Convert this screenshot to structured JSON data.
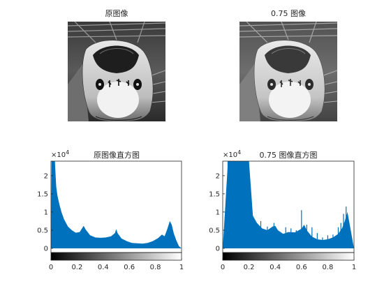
{
  "figure": {
    "images": [
      {
        "title": "原图像"
      },
      {
        "title": "0.75 图像"
      }
    ]
  },
  "chart_data": [
    {
      "type": "bar",
      "title": "原图像直方图",
      "x_range": [
        0,
        1
      ],
      "ylim": [
        0,
        24000
      ],
      "y_exponent": "× 10^4",
      "xticks": [
        "0",
        "0.2",
        "0.4",
        "0.6",
        "0.8",
        "1"
      ],
      "yticks": [
        "0",
        "0.5",
        "1",
        "1.5",
        "2"
      ],
      "colorbar": "grayscale 0 → 1",
      "bar_color": "#0072BD",
      "profile": [
        [
          0.0,
          0
        ],
        [
          0.005,
          24000
        ],
        [
          0.03,
          24000
        ],
        [
          0.04,
          17000
        ],
        [
          0.05,
          14500
        ],
        [
          0.065,
          12000
        ],
        [
          0.08,
          10000
        ],
        [
          0.1,
          8000
        ],
        [
          0.13,
          6000
        ],
        [
          0.16,
          5000
        ],
        [
          0.19,
          4300
        ],
        [
          0.22,
          4500
        ],
        [
          0.24,
          5600
        ],
        [
          0.25,
          6200
        ],
        [
          0.265,
          5200
        ],
        [
          0.3,
          3600
        ],
        [
          0.34,
          3000
        ],
        [
          0.38,
          2900
        ],
        [
          0.42,
          3000
        ],
        [
          0.46,
          3300
        ],
        [
          0.49,
          4200
        ],
        [
          0.5,
          5300
        ],
        [
          0.51,
          4200
        ],
        [
          0.54,
          2700
        ],
        [
          0.58,
          2000
        ],
        [
          0.62,
          1500
        ],
        [
          0.66,
          1400
        ],
        [
          0.7,
          1300
        ],
        [
          0.74,
          1500
        ],
        [
          0.78,
          2000
        ],
        [
          0.82,
          2800
        ],
        [
          0.85,
          3800
        ],
        [
          0.87,
          3300
        ],
        [
          0.89,
          5200
        ],
        [
          0.91,
          7500
        ],
        [
          0.925,
          6500
        ],
        [
          0.94,
          4200
        ],
        [
          0.96,
          2200
        ],
        [
          0.98,
          600
        ],
        [
          1.0,
          0
        ]
      ]
    },
    {
      "type": "bar",
      "title": "0.75 图像直方图",
      "x_range": [
        0,
        1
      ],
      "ylim": [
        0,
        24000
      ],
      "y_exponent": "× 10^4",
      "xticks": [
        "0",
        "0.2",
        "0.4",
        "0.6",
        "0.8",
        "1"
      ],
      "yticks": [
        "0",
        "0.5",
        "1",
        "1.5",
        "2"
      ],
      "colorbar": "grayscale 0 → 1",
      "bar_color": "#0072BD",
      "profile": [
        [
          0.0,
          0
        ],
        [
          0.04,
          24000
        ],
        [
          0.2,
          24000
        ],
        [
          0.23,
          9000
        ],
        [
          0.26,
          7000
        ],
        [
          0.3,
          5500
        ],
        [
          0.34,
          5000
        ],
        [
          0.38,
          6000
        ],
        [
          0.4,
          6200
        ],
        [
          0.42,
          5000
        ],
        [
          0.46,
          4000
        ],
        [
          0.5,
          4500
        ],
        [
          0.55,
          4400
        ],
        [
          0.6,
          5400
        ],
        [
          0.62,
          6500
        ],
        [
          0.64,
          5000
        ],
        [
          0.68,
          3200
        ],
        [
          0.72,
          2500
        ],
        [
          0.76,
          2300
        ],
        [
          0.8,
          2500
        ],
        [
          0.84,
          3000
        ],
        [
          0.88,
          4000
        ],
        [
          0.91,
          5600
        ],
        [
          0.93,
          7500
        ],
        [
          0.95,
          10000
        ],
        [
          0.97,
          6000
        ],
        [
          0.99,
          2000
        ],
        [
          1.0,
          0
        ]
      ],
      "spikes": [
        [
          0.04,
          24000
        ],
        [
          0.065,
          24000
        ],
        [
          0.09,
          24000
        ],
        [
          0.115,
          24000
        ],
        [
          0.14,
          24000
        ],
        [
          0.165,
          24000
        ],
        [
          0.19,
          24000
        ],
        [
          0.215,
          9000
        ],
        [
          0.24,
          7000
        ],
        [
          0.265,
          6000
        ],
        [
          0.29,
          7500
        ],
        [
          0.315,
          5000
        ],
        [
          0.34,
          6000
        ],
        [
          0.365,
          5000
        ],
        [
          0.39,
          7000
        ],
        [
          0.44,
          4500
        ],
        [
          0.48,
          5800
        ],
        [
          0.52,
          5500
        ],
        [
          0.56,
          5000
        ],
        [
          0.6,
          10500
        ],
        [
          0.64,
          6500
        ],
        [
          0.68,
          5800
        ],
        [
          0.72,
          4200
        ],
        [
          0.76,
          3000
        ],
        [
          0.8,
          3600
        ],
        [
          0.84,
          3800
        ],
        [
          0.88,
          5800
        ],
        [
          0.9,
          7000
        ],
        [
          0.92,
          9500
        ],
        [
          0.94,
          11500
        ]
      ]
    }
  ]
}
